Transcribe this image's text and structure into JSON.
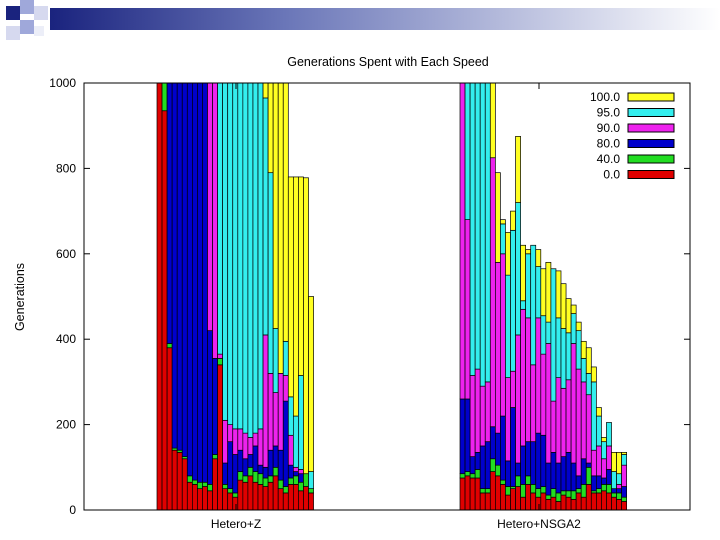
{
  "chart_data": {
    "type": "bar",
    "subtype": "stacked",
    "title": "Generations Spent with Each Speed",
    "xlabel": "",
    "ylabel": "Generations",
    "ylim": [
      0,
      1000
    ],
    "yticks": [
      0,
      200,
      400,
      600,
      800,
      1000
    ],
    "grid": false,
    "legend_position": "top-right",
    "series": [
      {
        "name": "0.0",
        "color": "#e00000"
      },
      {
        "name": "40.0",
        "color": "#22dd22"
      },
      {
        "name": "80.0",
        "color": "#0000cc"
      },
      {
        "name": "90.0",
        "color": "#ee22ee"
      },
      {
        "name": "95.0",
        "color": "#33eeee"
      },
      {
        "name": "100.0",
        "color": "#ffff22"
      }
    ],
    "groups": [
      {
        "label": "Hetero+Z",
        "bars": [
          [
            1000,
            0,
            0,
            0,
            0,
            0
          ],
          [
            935,
            65,
            0,
            0,
            0,
            0
          ],
          [
            380,
            10,
            610,
            0,
            0,
            0
          ],
          [
            140,
            5,
            855,
            0,
            0,
            0
          ],
          [
            135,
            5,
            860,
            0,
            0,
            0
          ],
          [
            120,
            5,
            875,
            0,
            0,
            0
          ],
          [
            65,
            15,
            920,
            0,
            0,
            0
          ],
          [
            60,
            10,
            930,
            0,
            0,
            0
          ],
          [
            50,
            15,
            935,
            0,
            0,
            0
          ],
          [
            55,
            10,
            935,
            0,
            0,
            0
          ],
          [
            45,
            15,
            360,
            580,
            0,
            0
          ],
          [
            120,
            10,
            225,
            645,
            0,
            0
          ],
          [
            340,
            15,
            0,
            10,
            635,
            0
          ],
          [
            50,
            10,
            50,
            100,
            790,
            0
          ],
          [
            40,
            10,
            110,
            40,
            800,
            0
          ],
          [
            30,
            10,
            90,
            60,
            810,
            0
          ],
          [
            70,
            20,
            50,
            50,
            810,
            0
          ],
          [
            65,
            15,
            40,
            60,
            820,
            0
          ],
          [
            80,
            20,
            30,
            40,
            830,
            0
          ],
          [
            65,
            25,
            60,
            30,
            820,
            0
          ],
          [
            60,
            25,
            20,
            85,
            810,
            0
          ],
          [
            55,
            20,
            25,
            310,
            555,
            35
          ],
          [
            65,
            15,
            60,
            180,
            470,
            210
          ],
          [
            80,
            20,
            50,
            125,
            150,
            575
          ],
          [
            50,
            20,
            70,
            180,
            0,
            680
          ],
          [
            40,
            15,
            200,
            60,
            80,
            605
          ],
          [
            60,
            15,
            30,
            70,
            90,
            515
          ],
          [
            60,
            20,
            10,
            10,
            120,
            560
          ],
          [
            45,
            20,
            20,
            10,
            220,
            465
          ],
          [
            55,
            30,
            0,
            0,
            0,
            693
          ],
          [
            40,
            10,
            0,
            0,
            40,
            410
          ]
        ]
      },
      {
        "label": "Hetero+NSGA2",
        "bars": [
          [
            75,
            10,
            175,
            740,
            0,
            0
          ],
          [
            80,
            10,
            170,
            420,
            320,
            0
          ],
          [
            75,
            10,
            40,
            190,
            685,
            0
          ],
          [
            75,
            20,
            40,
            195,
            670,
            0
          ],
          [
            40,
            10,
            100,
            140,
            710,
            0
          ],
          [
            40,
            10,
            110,
            140,
            700,
            0
          ],
          [
            90,
            30,
            75,
            630,
            0,
            175
          ],
          [
            80,
            25,
            75,
            400,
            0,
            210
          ],
          [
            60,
            10,
            150,
            380,
            70,
            10
          ],
          [
            35,
            20,
            60,
            195,
            240,
            100
          ],
          [
            50,
            5,
            185,
            85,
            330,
            45
          ],
          [
            55,
            25,
            30,
            300,
            310,
            155
          ],
          [
            30,
            30,
            90,
            320,
            20,
            130
          ],
          [
            60,
            20,
            80,
            290,
            150,
            10
          ],
          [
            40,
            20,
            100,
            180,
            280,
            0
          ],
          [
            30,
            20,
            130,
            270,
            120,
            40
          ],
          [
            40,
            15,
            120,
            190,
            90,
            110
          ],
          [
            25,
            10,
            75,
            280,
            50,
            140
          ],
          [
            30,
            20,
            85,
            120,
            310,
            0
          ],
          [
            20,
            20,
            70,
            200,
            140,
            110
          ],
          [
            35,
            10,
            80,
            160,
            140,
            105
          ],
          [
            30,
            15,
            90,
            170,
            110,
            80
          ],
          [
            25,
            20,
            65,
            280,
            70,
            20
          ],
          [
            40,
            10,
            30,
            250,
            90,
            20
          ],
          [
            30,
            30,
            60,
            180,
            55,
            40
          ],
          [
            60,
            40,
            10,
            160,
            50,
            60
          ],
          [
            40,
            5,
            35,
            60,
            160,
            35
          ],
          [
            40,
            10,
            30,
            70,
            70,
            20
          ],
          [
            45,
            15,
            15,
            45,
            40,
            10
          ],
          [
            40,
            20,
            35,
            55,
            55,
            0
          ],
          [
            30,
            10,
            10,
            0,
            40,
            45
          ],
          [
            25,
            15,
            10,
            10,
            25,
            50
          ],
          [
            20,
            10,
            25,
            50,
            25,
            5
          ]
        ]
      }
    ]
  }
}
